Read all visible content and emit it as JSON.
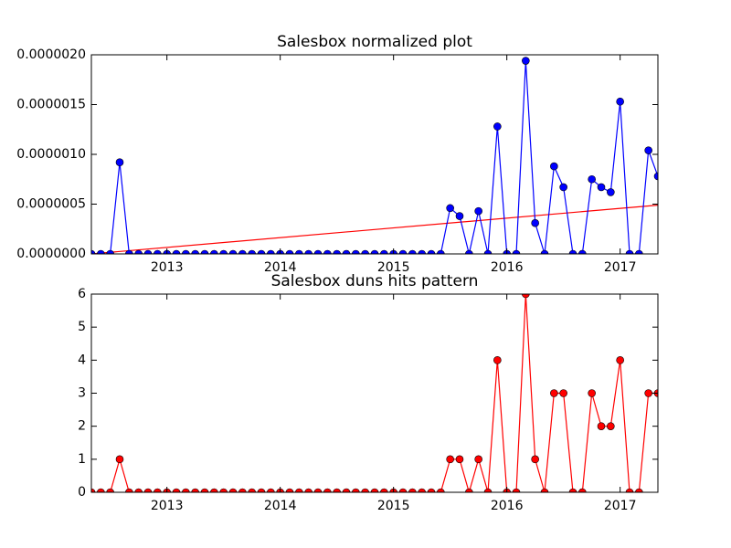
{
  "chart_data": [
    {
      "type": "line",
      "title": "Salesbox normalized plot",
      "x": [
        2012.3333,
        2012.4167,
        2012.5,
        2012.5833,
        2012.6667,
        2012.75,
        2012.8333,
        2012.9167,
        2013,
        2013.0833,
        2013.1667,
        2013.25,
        2013.3333,
        2013.4167,
        2013.5,
        2013.5833,
        2013.6667,
        2013.75,
        2013.8333,
        2013.9167,
        2014,
        2014.0833,
        2014.1667,
        2014.25,
        2014.3333,
        2014.4167,
        2014.5,
        2014.5833,
        2014.6667,
        2014.75,
        2014.8333,
        2014.9167,
        2015,
        2015.0833,
        2015.1667,
        2015.25,
        2015.3333,
        2015.4167,
        2015.5,
        2015.5833,
        2015.6667,
        2015.75,
        2015.8333,
        2015.9167,
        2016,
        2016.0833,
        2016.1667,
        2016.25,
        2016.3333,
        2016.4167,
        2016.5,
        2016.5833,
        2016.6667,
        2016.75,
        2016.8333,
        2016.9167,
        2017,
        2017.0833,
        2017.1667,
        2017.25,
        2017.3333
      ],
      "series": [
        {
          "color": "#0000ff",
          "values": [
            0,
            0,
            0,
            9.2e-07,
            0,
            0,
            0,
            0,
            0,
            0,
            0,
            0,
            0,
            0,
            0,
            0,
            0,
            0,
            0,
            0,
            0,
            0,
            0,
            0,
            0,
            0,
            0,
            0,
            0,
            0,
            0,
            0,
            0,
            0,
            0,
            0,
            0,
            0,
            4.6e-07,
            3.8e-07,
            0,
            4.3e-07,
            0,
            1.28e-06,
            0,
            0,
            1.94e-06,
            3.1e-07,
            0,
            8.8e-07,
            6.7e-07,
            0,
            0,
            7.5e-07,
            6.7e-07,
            6.2e-07,
            1.53e-06,
            0,
            0,
            1.04e-06,
            7.8e-07
          ]
        }
      ],
      "trend": {
        "color": "#ff0000",
        "x": [
          2012.3333,
          2017.3333
        ],
        "values": [
          0,
          4.9e-07
        ]
      },
      "xlim": [
        2012.3333,
        2017.3333
      ],
      "xticks": [
        2013,
        2014,
        2015,
        2016,
        2017
      ],
      "ylim": [
        0,
        2e-06
      ],
      "yticks": [
        {
          "value": 0,
          "label": "0.0000000"
        },
        {
          "value": 5e-07,
          "label": "0.0000005"
        },
        {
          "value": 1e-06,
          "label": "0.0000010"
        },
        {
          "value": 1.5e-06,
          "label": "0.0000015"
        },
        {
          "value": 2e-06,
          "label": "0.0000020"
        }
      ]
    },
    {
      "type": "line",
      "title": "Salesbox duns hits pattern",
      "x": [
        2012.3333,
        2012.4167,
        2012.5,
        2012.5833,
        2012.6667,
        2012.75,
        2012.8333,
        2012.9167,
        2013,
        2013.0833,
        2013.1667,
        2013.25,
        2013.3333,
        2013.4167,
        2013.5,
        2013.5833,
        2013.6667,
        2013.75,
        2013.8333,
        2013.9167,
        2014,
        2014.0833,
        2014.1667,
        2014.25,
        2014.3333,
        2014.4167,
        2014.5,
        2014.5833,
        2014.6667,
        2014.75,
        2014.8333,
        2014.9167,
        2015,
        2015.0833,
        2015.1667,
        2015.25,
        2015.3333,
        2015.4167,
        2015.5,
        2015.5833,
        2015.6667,
        2015.75,
        2015.8333,
        2015.9167,
        2016,
        2016.0833,
        2016.1667,
        2016.25,
        2016.3333,
        2016.4167,
        2016.5,
        2016.5833,
        2016.6667,
        2016.75,
        2016.8333,
        2016.9167,
        2017,
        2017.0833,
        2017.1667,
        2017.25,
        2017.3333
      ],
      "series": [
        {
          "color": "#ff0000",
          "values": [
            0,
            0,
            0,
            1,
            0,
            0,
            0,
            0,
            0,
            0,
            0,
            0,
            0,
            0,
            0,
            0,
            0,
            0,
            0,
            0,
            0,
            0,
            0,
            0,
            0,
            0,
            0,
            0,
            0,
            0,
            0,
            0,
            0,
            0,
            0,
            0,
            0,
            0,
            1,
            1,
            0,
            1,
            0,
            4,
            0,
            0,
            6,
            1,
            0,
            3,
            3,
            0,
            0,
            3,
            2,
            2,
            4,
            0,
            0,
            3,
            3
          ]
        }
      ],
      "xlim": [
        2012.3333,
        2017.3333
      ],
      "xticks": [
        2013,
        2014,
        2015,
        2016,
        2017
      ],
      "ylim": [
        0,
        6
      ],
      "yticks": [
        0,
        1,
        2,
        3,
        4,
        5,
        6
      ]
    }
  ]
}
